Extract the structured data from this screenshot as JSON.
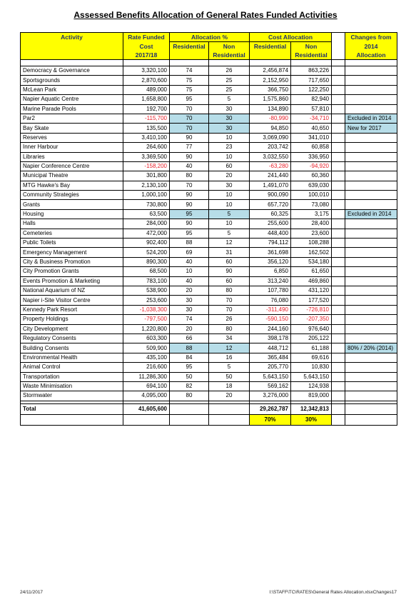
{
  "header": {
    "title": "Assessed Benefits Allocation of General Rates Funded Activities"
  },
  "table": {
    "columns": {
      "activity": "Activity",
      "cost": [
        "Rate Funded",
        "Cost",
        "2017/18"
      ],
      "allocation_pct": "Allocation %",
      "cost_allocation": "Cost Allocation",
      "residential": "Residential",
      "non_residential": [
        "Non",
        "Residential"
      ],
      "changes": [
        "Changes from",
        "2014",
        "Allocation"
      ]
    },
    "rows": [
      {
        "cells": [
          "Democracy & Governance",
          "3,320,100",
          "74",
          "26",
          "2,456,874",
          "863,226"
        ]
      },
      {
        "cells": [
          "Sportsgrounds",
          "2,870,600",
          "75",
          "25",
          "2,152,950",
          "717,650"
        ]
      },
      {
        "cells": [
          "McLean Park",
          "489,000",
          "75",
          "25",
          "366,750",
          "122,250"
        ]
      },
      {
        "cells": [
          "Napier Aquatic Centre",
          "1,658,800",
          "95",
          "5",
          "1,575,860",
          "82,940"
        ]
      },
      {
        "cells": [
          "Marine Parade Pools",
          "192,700",
          "70",
          "30",
          "134,890",
          "57,810"
        ]
      },
      {
        "cells": [
          "Par2",
          "-115,700",
          "70",
          "30",
          "-80,990",
          "-34,710"
        ],
        "note": "Excluded in 2014",
        "shaded": true
      },
      {
        "cells": [
          "Bay Skate",
          "135,500",
          "70",
          "30",
          "94,850",
          "40,650"
        ],
        "note": "New for 2017",
        "shaded": true
      },
      {
        "cells": [
          "Reserves",
          "3,410,100",
          "90",
          "10",
          "3,069,090",
          "341,010"
        ]
      },
      {
        "cells": [
          "Inner Harbour",
          "264,600",
          "77",
          "23",
          "203,742",
          "60,858"
        ]
      },
      {
        "cells": [
          "Libraries",
          "3,369,500",
          "90",
          "10",
          "3,032,550",
          "336,950"
        ]
      },
      {
        "cells": [
          "Napier Conference Centre",
          "-158,200",
          "40",
          "60",
          "-63,280",
          "-94,920"
        ]
      },
      {
        "cells": [
          "Municipal Theatre",
          "301,800",
          "80",
          "20",
          "241,440",
          "60,360"
        ]
      },
      {
        "cells": [
          "MTG Hawke's Bay",
          "2,130,100",
          "70",
          "30",
          "1,491,070",
          "639,030"
        ]
      },
      {
        "cells": [
          "Community Strategies",
          "1,000,100",
          "90",
          "10",
          "900,090",
          "100,010"
        ]
      },
      {
        "cells": [
          "Grants",
          "730,800",
          "90",
          "10",
          "657,720",
          "73,080"
        ]
      },
      {
        "cells": [
          "Housing",
          "63,500",
          "95",
          "5",
          "60,325",
          "3,175"
        ],
        "note": "Excluded in 2014",
        "shaded": true
      },
      {
        "cells": [
          "Halls",
          "284,000",
          "90",
          "10",
          "255,600",
          "28,400"
        ]
      },
      {
        "cells": [
          "Cemeteries",
          "472,000",
          "95",
          "5",
          "448,400",
          "23,600"
        ]
      },
      {
        "cells": [
          "Public Toilets",
          "902,400",
          "88",
          "12",
          "794,112",
          "108,288"
        ]
      },
      {
        "cells": [
          "Emergency Management",
          "524,200",
          "69",
          "31",
          "361,698",
          "162,502"
        ]
      },
      {
        "cells": [
          "City & Business Promotion",
          "890,300",
          "40",
          "60",
          "356,120",
          "534,180"
        ]
      },
      {
        "cells": [
          "City Promotion Grants",
          "68,500",
          "10",
          "90",
          "6,850",
          "61,650"
        ]
      },
      {
        "cells": [
          "Events Promotion & Marketing",
          "783,100",
          "40",
          "60",
          "313,240",
          "469,860"
        ]
      },
      {
        "cells": [
          "National Aquarium of NZ",
          "538,900",
          "20",
          "80",
          "107,780",
          "431,120"
        ]
      },
      {
        "cells": [
          "Napier i-Site Visitor Centre",
          "253,600",
          "30",
          "70",
          "76,080",
          "177,520"
        ]
      },
      {
        "cells": [
          "Kennedy Park Resort",
          "-1,038,300",
          "30",
          "70",
          "-311,490",
          "-726,810"
        ]
      },
      {
        "cells": [
          "Property Holdings",
          "-797,500",
          "74",
          "26",
          "-590,150",
          "-207,350"
        ]
      },
      {
        "cells": [
          "City Development",
          "1,220,800",
          "20",
          "80",
          "244,160",
          "976,640"
        ]
      },
      {
        "cells": [
          "Regulatory Consents",
          "603,300",
          "66",
          "34",
          "398,178",
          "205,122"
        ]
      },
      {
        "cells": [
          "Building Consents",
          "509,900",
          "88",
          "12",
          "448,712",
          "61,188"
        ],
        "note": "80% / 20% (2014)",
        "shaded": true
      },
      {
        "cells": [
          "Environmental Health",
          "435,100",
          "84",
          "16",
          "365,484",
          "69,616"
        ]
      },
      {
        "cells": [
          "Animal Control",
          "216,600",
          "95",
          "5",
          "205,770",
          "10,830"
        ]
      },
      {
        "cells": [
          "Transportation",
          "11,286,300",
          "50",
          "50",
          "5,643,150",
          "5,643,150"
        ]
      },
      {
        "cells": [
          "Waste Minimisation",
          "694,100",
          "82",
          "18",
          "569,162",
          "124,938"
        ]
      },
      {
        "cells": [
          "Stormwater",
          "4,095,000",
          "80",
          "20",
          "3,276,000",
          "819,000"
        ]
      }
    ],
    "total": {
      "label": "Total",
      "cost": "41,605,600",
      "residential": "29,262,787",
      "non_residential": "12,342,813"
    },
    "share": {
      "residential": "70%",
      "non_residential": "30%"
    }
  },
  "footer": {
    "date": "24/11/2017",
    "path": "I:\\STAFF\\TC\\RATES\\General Rates Allocation.xlsxChanges17"
  }
}
